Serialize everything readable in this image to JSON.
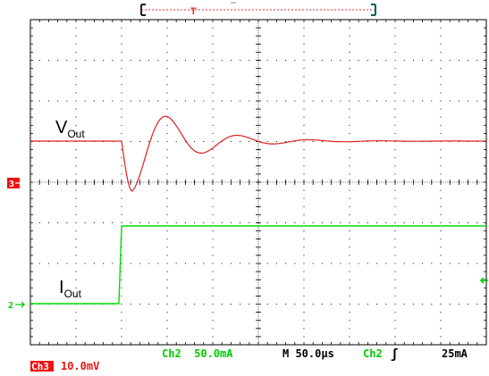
{
  "colors": {
    "grid": "#000000",
    "ch3": "#e02020",
    "ch2": "#00dd00",
    "trigger_bar": "#e03030",
    "trigger_end": "#006060",
    "background": "#ffffff",
    "ch3_badge_bg": "#ee1111",
    "ch3_badge_fg": "#ffffff"
  },
  "icons": {
    "ch3_marker": "arrow-right",
    "ch2_marker": "arrow-right",
    "trigger_level": "arrow-left",
    "trigger_position": "T-marker",
    "trigger_slope": "rising-edge"
  },
  "traces": {
    "vout_label": "V",
    "vout_sub": "Out",
    "iout_label": "I",
    "iout_sub": "Out"
  },
  "markers": {
    "ch3": "3",
    "ch2": "2",
    "trigger_T": "T"
  },
  "status": {
    "ch2_scale": "Ch2  50.0mA",
    "timebase": "M 50.0µs",
    "trigger_source": "Ch2",
    "trigger_slope_symbol": "ʃ",
    "trigger_level": "25mA",
    "ch3_badge": "Ch3",
    "ch3_scale": "10.0mV"
  }
}
